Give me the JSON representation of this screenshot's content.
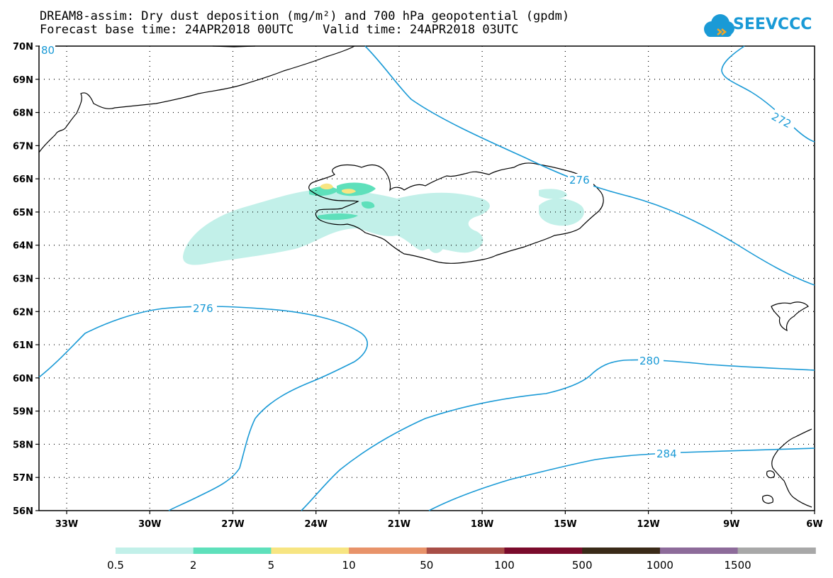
{
  "title_line1": "DREAM8-assim: Dry dust deposition (mg/m²) and 700 hPa geopotential (gpdm)",
  "title_line2": "Forecast base time: 24APR2018 00UTC    Valid time: 24APR2018 03UTC",
  "logo_text": "SEEVCCC",
  "map": {
    "lon_labels": [
      "33W",
      "30W",
      "27W",
      "24W",
      "21W",
      "18W",
      "15W",
      "12W",
      "9W",
      "6W"
    ],
    "lat_labels": [
      "70N",
      "69N",
      "68N",
      "67N",
      "66N",
      "65N",
      "64N",
      "63N",
      "62N",
      "61N",
      "60N",
      "59N",
      "58N",
      "57N",
      "56N"
    ],
    "lon_range": [
      -34,
      -6
    ],
    "lat_range": [
      56,
      70
    ],
    "contour_color": "#1a9ad6",
    "contour_labels": [
      "80",
      "272",
      "276",
      "276",
      "280",
      "284"
    ]
  },
  "colorbar": {
    "labels": [
      "0.5",
      "2",
      "5",
      "10",
      "50",
      "100",
      "500",
      "1000",
      "1500"
    ],
    "colors": [
      "#c2f0e9",
      "#5ee0bb",
      "#f7e582",
      "#e8936a",
      "#a84e47",
      "#7a0b2c",
      "#3a2a18",
      "#8d6b9a",
      "#a8a8a8"
    ]
  }
}
